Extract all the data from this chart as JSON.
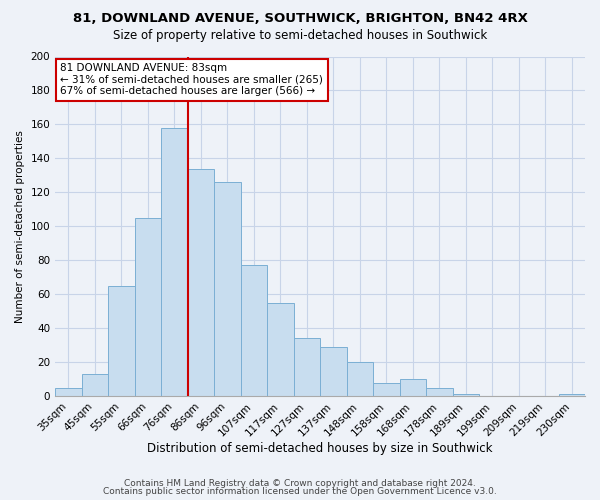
{
  "title": "81, DOWNLAND AVENUE, SOUTHWICK, BRIGHTON, BN42 4RX",
  "subtitle": "Size of property relative to semi-detached houses in Southwick",
  "xlabel": "Distribution of semi-detached houses by size in Southwick",
  "ylabel": "Number of semi-detached properties",
  "bar_labels": [
    "35sqm",
    "45sqm",
    "55sqm",
    "66sqm",
    "76sqm",
    "86sqm",
    "96sqm",
    "107sqm",
    "117sqm",
    "127sqm",
    "137sqm",
    "148sqm",
    "158sqm",
    "168sqm",
    "178sqm",
    "189sqm",
    "199sqm",
    "209sqm",
    "219sqm",
    "230sqm"
  ],
  "bar_values": [
    5,
    13,
    65,
    105,
    158,
    134,
    126,
    77,
    55,
    34,
    29,
    20,
    8,
    10,
    5,
    1,
    0,
    0,
    0,
    1
  ],
  "bar_color": "#c8ddef",
  "bar_edge_color": "#7bafd4",
  "vline_color": "#cc0000",
  "vline_bar_index": 4,
  "annotation_title": "81 DOWNLAND AVENUE: 83sqm",
  "annotation_line1": "← 31% of semi-detached houses are smaller (265)",
  "annotation_line2": "67% of semi-detached houses are larger (566) →",
  "ylim": [
    0,
    200
  ],
  "yticks": [
    0,
    20,
    40,
    60,
    80,
    100,
    120,
    140,
    160,
    180,
    200
  ],
  "footer1": "Contains HM Land Registry data © Crown copyright and database right 2024.",
  "footer2": "Contains public sector information licensed under the Open Government Licence v3.0.",
  "bg_color": "#eef2f8",
  "grid_color": "#c8d4e8",
  "title_fontsize": 9.5,
  "subtitle_fontsize": 8.5,
  "annotation_fontsize": 7.5,
  "xlabel_fontsize": 8.5,
  "ylabel_fontsize": 7.5,
  "tick_fontsize": 7.5,
  "footer_fontsize": 6.5
}
